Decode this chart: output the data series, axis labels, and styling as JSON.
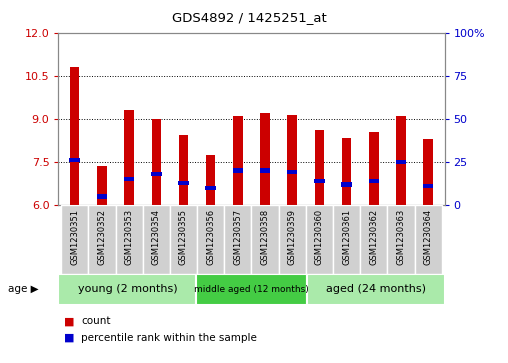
{
  "title": "GDS4892 / 1425251_at",
  "samples": [
    "GSM1230351",
    "GSM1230352",
    "GSM1230353",
    "GSM1230354",
    "GSM1230355",
    "GSM1230356",
    "GSM1230357",
    "GSM1230358",
    "GSM1230359",
    "GSM1230360",
    "GSM1230361",
    "GSM1230362",
    "GSM1230363",
    "GSM1230364"
  ],
  "count_values": [
    10.8,
    7.35,
    9.3,
    9.0,
    8.45,
    7.75,
    9.1,
    9.2,
    9.15,
    8.6,
    8.35,
    8.55,
    9.1,
    8.3
  ],
  "percentile_values": [
    26,
    5,
    15,
    18,
    13,
    10,
    20,
    20,
    19,
    14,
    12,
    14,
    25,
    11
  ],
  "ylim_left": [
    6,
    12
  ],
  "ylim_right": [
    0,
    100
  ],
  "yticks_left": [
    6,
    7.5,
    9,
    10.5,
    12
  ],
  "yticks_right": [
    0,
    25,
    50,
    75,
    100
  ],
  "bar_color": "#cc0000",
  "percentile_color": "#0000cc",
  "bar_bottom": 6.0,
  "groups": [
    {
      "label": "young (2 months)",
      "start": 0,
      "end": 5,
      "color": "#aaeaaa"
    },
    {
      "label": "middle aged (12 months)",
      "start": 5,
      "end": 9,
      "color": "#44cc44"
    },
    {
      "label": "aged (24 months)",
      "start": 9,
      "end": 14,
      "color": "#aaeaaa"
    }
  ],
  "group_label": "age",
  "legend_count_label": "count",
  "legend_percentile_label": "percentile rank within the sample",
  "background_color": "#ffffff",
  "plot_bg": "#ffffff",
  "tick_bg": "#d0d0d0",
  "bar_width": 0.35
}
